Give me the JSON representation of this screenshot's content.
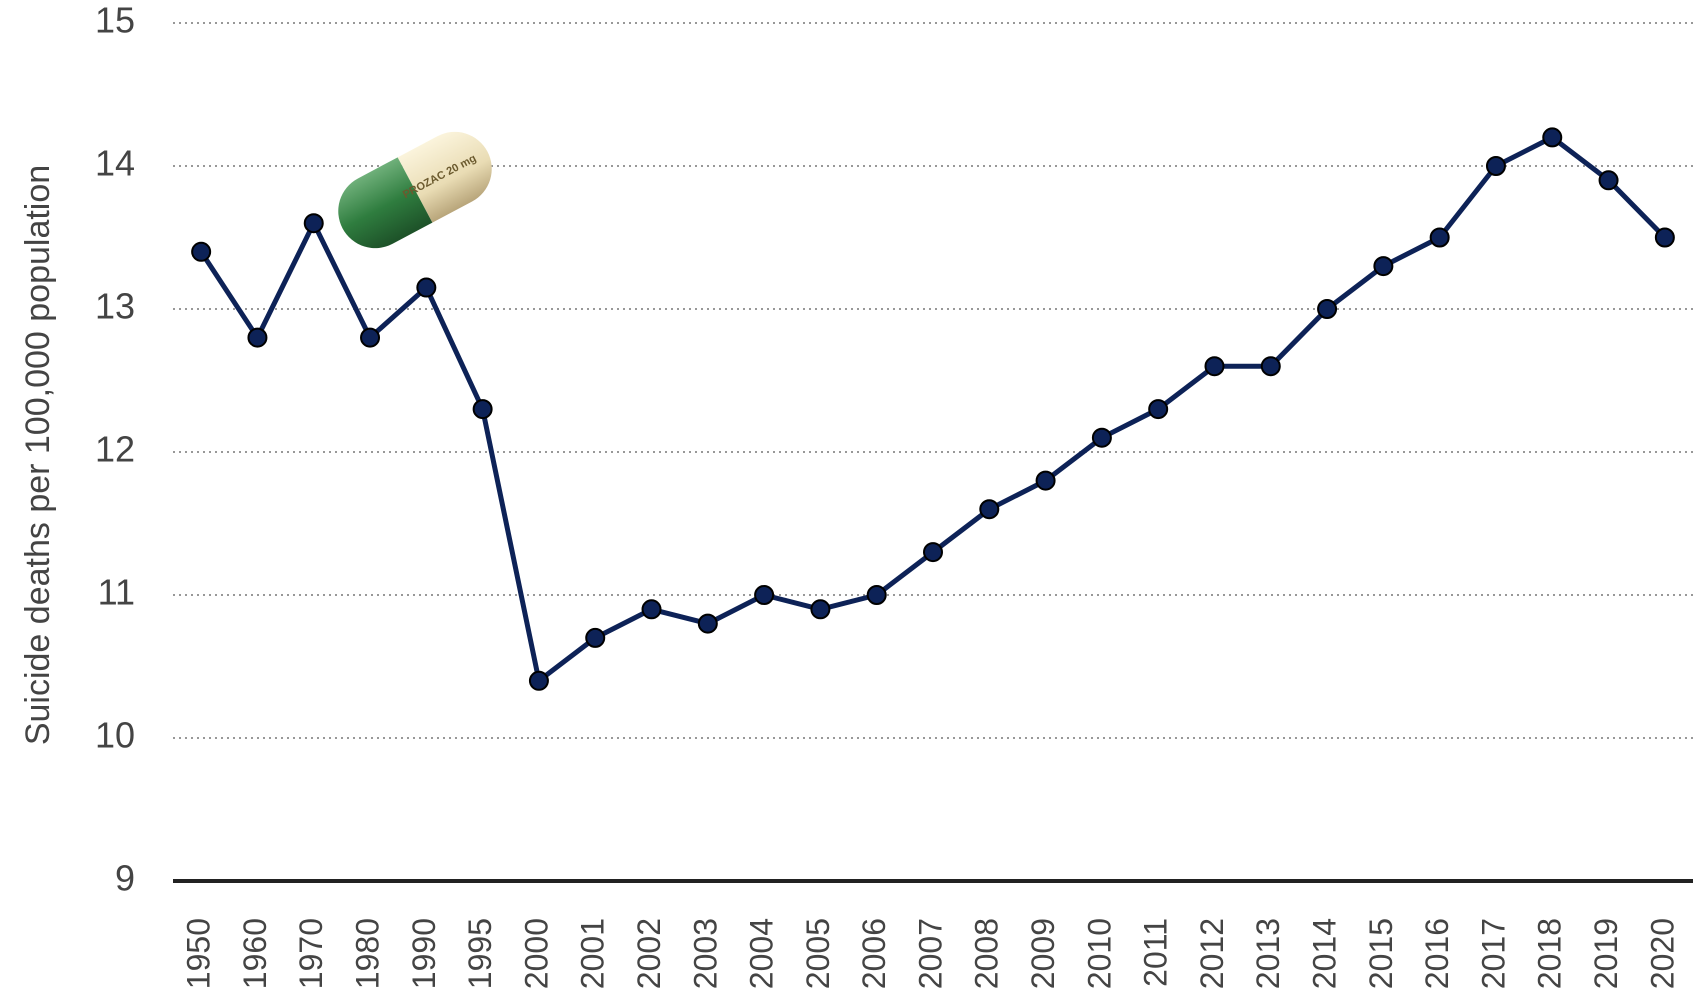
{
  "chart_data": {
    "type": "line",
    "y_label": "Suicide deaths per 100,000 population",
    "annotation": "PROZAC 20 mg",
    "categories": [
      "1950",
      "1960",
      "1970",
      "1980",
      "1990",
      "1995",
      "2000",
      "2001",
      "2002",
      "2003",
      "2004",
      "2005",
      "2006",
      "2007",
      "2008",
      "2009",
      "2010",
      "2011",
      "2012",
      "2013",
      "2014",
      "2015",
      "2016",
      "2017",
      "2018",
      "2019",
      "2020"
    ],
    "series": [
      {
        "color": "#0d2257",
        "values": [
          13.4,
          12.8,
          13.6,
          12.8,
          13.15,
          12.3,
          10.4,
          10.7,
          10.9,
          10.8,
          11.0,
          10.9,
          11.0,
          11.3,
          11.6,
          11.8,
          12.1,
          12.3,
          12.6,
          12.6,
          13.0,
          13.3,
          13.5,
          14.0,
          14.2,
          13.9,
          13.5
        ]
      }
    ],
    "ylim": [
      9,
      15
    ],
    "yticks": [
      9,
      10,
      11,
      12,
      13,
      14,
      15
    ],
    "grid": true
  }
}
